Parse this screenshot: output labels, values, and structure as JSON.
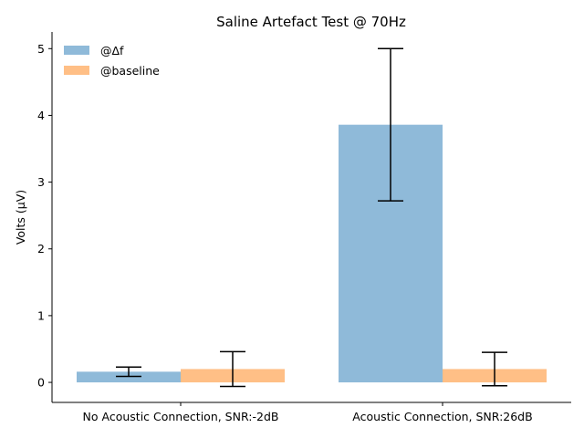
{
  "chart_data": {
    "type": "bar",
    "title": "Saline Artefact Test @ 70Hz",
    "xlabel": "",
    "ylabel": "Volts (μV)",
    "ylim": [
      -0.3,
      5.25
    ],
    "yticks": [
      0,
      1,
      2,
      3,
      4,
      5
    ],
    "categories": [
      "No Acoustic Connection, SNR:-2dB",
      "Acoustic Connection, SNR:26dB"
    ],
    "series": [
      {
        "name": "@Δf",
        "color": "#8fbad9",
        "values": [
          0.16,
          3.86
        ],
        "errors": [
          0.07,
          1.14
        ]
      },
      {
        "name": "@baseline",
        "color": "#ffbf86",
        "values": [
          0.2,
          0.2
        ],
        "errors": [
          0.26,
          0.25
        ]
      }
    ],
    "grid": false,
    "legend_position": "top-left"
  }
}
